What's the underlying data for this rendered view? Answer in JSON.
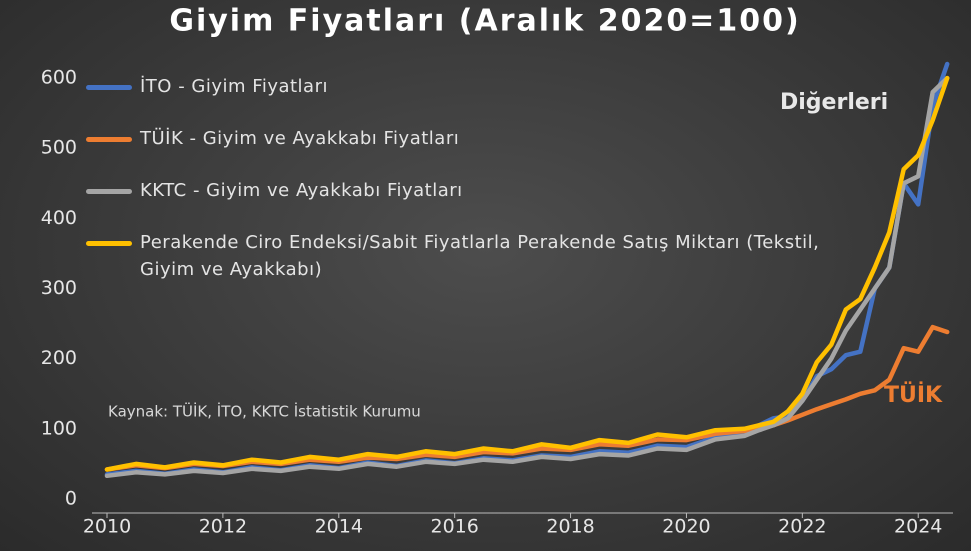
{
  "chart_data": {
    "type": "line",
    "title": "Giyim Fiyatları (Aralık 2020=100)",
    "source": "Kaynak: TÜİK, İTO, KKTC İstatistik Kurumu",
    "annotations": [
      "Diğerleri",
      "TÜİK"
    ],
    "x": [
      2010,
      2010.5,
      2011,
      2011.5,
      2012,
      2012.5,
      2013,
      2013.5,
      2014,
      2014.5,
      2015,
      2015.5,
      2016,
      2016.5,
      2017,
      2017.5,
      2018,
      2018.5,
      2019,
      2019.5,
      2020,
      2020.5,
      2021,
      2021.25,
      2021.5,
      2021.75,
      2022,
      2022.25,
      2022.5,
      2022.75,
      2023,
      2023.25,
      2023.5,
      2023.75,
      2024,
      2024.25,
      2024.5
    ],
    "series": [
      {
        "name": "İTO - Giyim Fiyatları",
        "color": "#4472c4",
        "values": [
          35,
          40,
          36,
          42,
          38,
          45,
          41,
          48,
          44,
          52,
          47,
          55,
          51,
          58,
          55,
          62,
          60,
          68,
          66,
          76,
          74,
          88,
          92,
          105,
          115,
          118,
          140,
          175,
          185,
          205,
          210,
          300,
          330,
          450,
          420,
          560,
          620
        ]
      },
      {
        "name": "TÜİK - Giyim ve Ayakkabı Fiyatları",
        "color": "#ed7d31",
        "values": [
          42,
          48,
          44,
          50,
          47,
          53,
          50,
          56,
          53,
          59,
          57,
          63,
          60,
          67,
          65,
          72,
          70,
          78,
          76,
          85,
          84,
          93,
          97,
          102,
          105,
          112,
          120,
          128,
          135,
          142,
          150,
          155,
          170,
          215,
          210,
          245,
          238
        ]
      },
      {
        "name": "KKTC - Giyim ve Ayakkabı Fiyatları",
        "color": "#a5a5a5",
        "values": [
          33,
          38,
          35,
          40,
          37,
          43,
          40,
          46,
          43,
          50,
          46,
          53,
          50,
          56,
          53,
          60,
          57,
          64,
          62,
          72,
          70,
          85,
          90,
          98,
          105,
          115,
          140,
          170,
          200,
          240,
          270,
          300,
          330,
          450,
          460,
          580,
          600
        ]
      },
      {
        "name": "Perakende Ciro Endeksi/Sabit Fiyatlarla Perakende Satış Miktarı (Tekstil, Giyim ve Ayakkabı)",
        "color": "#ffc000",
        "values": [
          42,
          50,
          45,
          52,
          48,
          56,
          52,
          60,
          56,
          64,
          60,
          68,
          64,
          72,
          68,
          78,
          73,
          84,
          80,
          92,
          88,
          98,
          100,
          105,
          110,
          125,
          150,
          195,
          220,
          270,
          285,
          330,
          380,
          470,
          490,
          540,
          600
        ]
      }
    ],
    "xlim": [
      2010,
      2024.6
    ],
    "xticks": [
      2010,
      2012,
      2014,
      2016,
      2018,
      2020,
      2022,
      2024
    ],
    "ylim": [
      0,
      650
    ],
    "yticks": [
      0,
      100,
      200,
      300,
      400,
      500,
      600
    ],
    "grid": false,
    "legend": "upper-left"
  }
}
